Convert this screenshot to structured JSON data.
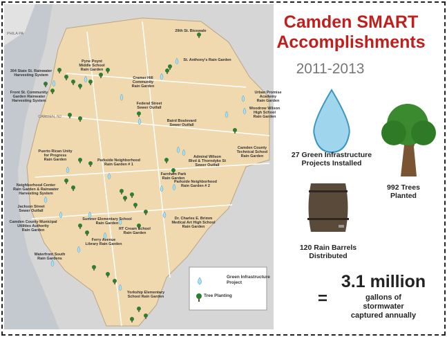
{
  "header": {
    "title_lines": [
      "Camden SMART",
      "Accomplishments"
    ],
    "subtitle": "2011-2013"
  },
  "map": {
    "place_labels": [
      "PHILA PA",
      "CAMDEN, NJ"
    ],
    "labels": [
      {
        "lines": [
          "29th St. Bioswale"
        ]
      },
      {
        "lines": [
          "St. Anthony's Rain Garden"
        ]
      },
      {
        "lines": [
          "Pyne Poynt",
          "Middle School",
          "Rain Garden"
        ]
      },
      {
        "lines": [
          "304 State St. Rainwater",
          "Harvesting System"
        ]
      },
      {
        "lines": [
          "Cramer Hill",
          "Community",
          "Rain Garden"
        ]
      },
      {
        "lines": [
          "Front St. Community",
          "Garden Rainwater",
          "Harvesting System"
        ]
      },
      {
        "lines": [
          "Urban Promise",
          "Academy",
          "Rain Garden"
        ]
      },
      {
        "lines": [
          "Woodrow Wilson",
          "High School",
          "Rain Garden"
        ]
      },
      {
        "lines": [
          "Federal Street",
          "Sewer Outfall"
        ]
      },
      {
        "lines": [
          "Baird Boulevard",
          "Sewer Outfall"
        ]
      },
      {
        "lines": [
          "Admiral Wilson",
          "Blvd & Thorndyke St",
          "Sewer Outfall"
        ]
      },
      {
        "lines": [
          "Camden County",
          "Technical School",
          "Rain Garden"
        ]
      },
      {
        "lines": [
          "Puerto Rican Unity",
          "for Progress",
          "Rain Garden"
        ]
      },
      {
        "lines": [
          "Parkside Neighborhood",
          "Rain Garden # 1"
        ]
      },
      {
        "lines": [
          "Farnham Park",
          "Rain Garden"
        ]
      },
      {
        "lines": [
          "Parkside Neighborhood",
          "Rain Garden # 2"
        ]
      },
      {
        "lines": [
          "Neighborhood Center",
          "Rain Garden & Rainwater",
          "Harvesting System"
        ]
      },
      {
        "lines": [
          "Jackson Street",
          "Sewer Outfall"
        ]
      },
      {
        "lines": [
          "Sumner Elementary School",
          "Rain Garden"
        ]
      },
      {
        "lines": [
          "Dr. Charles E. Brimm",
          "Medical Art High School",
          "Rain Garden"
        ]
      },
      {
        "lines": [
          "Camden County Municipal",
          "Utilities Authority",
          "Rain Garden"
        ]
      },
      {
        "lines": [
          "RT Cream School",
          "Rain Garden"
        ]
      },
      {
        "lines": [
          "Ferry Avenue",
          "Library Rain Garden"
        ]
      },
      {
        "lines": [
          "Waterfront South",
          "Rain Gardens"
        ]
      },
      {
        "lines": [
          "Yorkship Elementary",
          "School Rain Garden"
        ]
      }
    ],
    "legend": {
      "items": [
        {
          "lines": [
            "Green Infrastructure",
            "Project"
          ]
        },
        {
          "lines": [
            "Tree Planting"
          ]
        }
      ]
    }
  },
  "stats": {
    "projects": [
      "27 Green Infrastructure",
      "Projects Installed"
    ],
    "trees": [
      "992 Trees",
      "Planted"
    ],
    "barrels": [
      "120 Rain Barrels",
      "Distributed"
    ],
    "equals": "=",
    "gallons": "3.1 million",
    "gallons_caption": [
      "gallons of",
      "stormwater",
      "captured annually"
    ]
  }
}
